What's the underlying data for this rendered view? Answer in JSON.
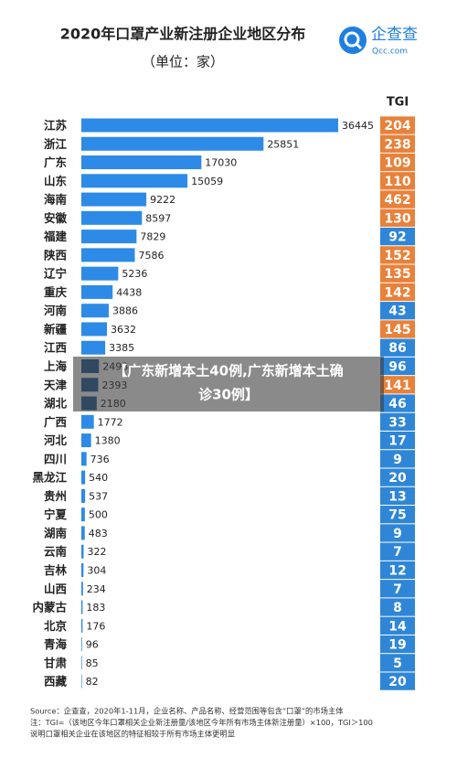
{
  "chart_data": {
    "type": "bar",
    "title": "2020年口罩产业新注册企业地区分布",
    "subtitle": "（单位：家）",
    "logo": {
      "name": "企查查",
      "domain": "Qcc.com"
    },
    "categories": [
      "江苏",
      "浙江",
      "广东",
      "山东",
      "海南",
      "安徽",
      "福建",
      "陕西",
      "辽宁",
      "重庆",
      "河南",
      "新疆",
      "江西",
      "上海",
      "天津",
      "湖北",
      "广西",
      "河北",
      "四川",
      "黑龙江",
      "贵州",
      "宁夏",
      "湖南",
      "云南",
      "吉林",
      "山西",
      "内蒙古",
      "北京",
      "青海",
      "甘肃",
      "西藏"
    ],
    "values": [
      36445,
      25851,
      17030,
      15059,
      9222,
      8597,
      7829,
      7586,
      5236,
      4438,
      3886,
      3632,
      3385,
      2493,
      2393,
      2180,
      1772,
      1380,
      736,
      540,
      537,
      500,
      483,
      322,
      304,
      234,
      183,
      176,
      96,
      85,
      82
    ],
    "bar_colors": [
      "#2d8ae6",
      "#2d8ae6",
      "#2d8ae6",
      "#2d8ae6",
      "#2d8ae6",
      "#2d8ae6",
      "#2d8ae6",
      "#2d8ae6",
      "#2d8ae6",
      "#2d8ae6",
      "#2d8ae6",
      "#2d8ae6",
      "#2d8ae6",
      "#1e5a96",
      "#1e5a96",
      "#1e5a96",
      "#2d8ae6",
      "#2d8ae6",
      "#2d8ae6",
      "#2d8ae6",
      "#2d8ae6",
      "#2d8ae6",
      "#2d8ae6",
      "#2d8ae6",
      "#2d8ae6",
      "#2d8ae6",
      "#2d8ae6",
      "#2d8ae6",
      "#2d8ae6",
      "#2d8ae6",
      "#2d8ae6"
    ],
    "xlim": [
      0,
      38000
    ],
    "tgi_header": "TGI",
    "tgi": [
      204,
      238,
      109,
      110,
      462,
      130,
      92,
      152,
      135,
      142,
      43,
      145,
      86,
      96,
      141,
      46,
      33,
      17,
      9,
      20,
      13,
      75,
      9,
      7,
      12,
      7,
      8,
      14,
      19,
      5,
      20
    ],
    "tgi_colors": [
      "#e9813a",
      "#e9813a",
      "#e9813a",
      "#e9813a",
      "#e9813a",
      "#e9813a",
      "#2f86d6",
      "#e9813a",
      "#e9813a",
      "#e9813a",
      "#2f86d6",
      "#e9813a",
      "#2f86d6",
      "#2f86d6",
      "#e9813a",
      "#2f86d6",
      "#2f86d6",
      "#2f86d6",
      "#2f86d6",
      "#2f86d6",
      "#2f86d6",
      "#2f86d6",
      "#2f86d6",
      "#2f86d6",
      "#2f86d6",
      "#2f86d6",
      "#2f86d6",
      "#2f86d6",
      "#2f86d6",
      "#2f86d6",
      "#2f86d6"
    ],
    "source": [
      "Source：企查查，2020年1-11月，企业名称、产品名称、经营范围等包含“口罩”的市场主体",
      "注：TGI=（该地区今年口罩相关企业新注册量/该地区今年所有市场主体新注册量）×100，TGI＞100",
      "说明口罩相关企业在该地区的特征相较于所有市场主体更明显"
    ],
    "banner": [
      "【广东新增本土40例,广东新增本土确",
      "诊30例】"
    ]
  }
}
